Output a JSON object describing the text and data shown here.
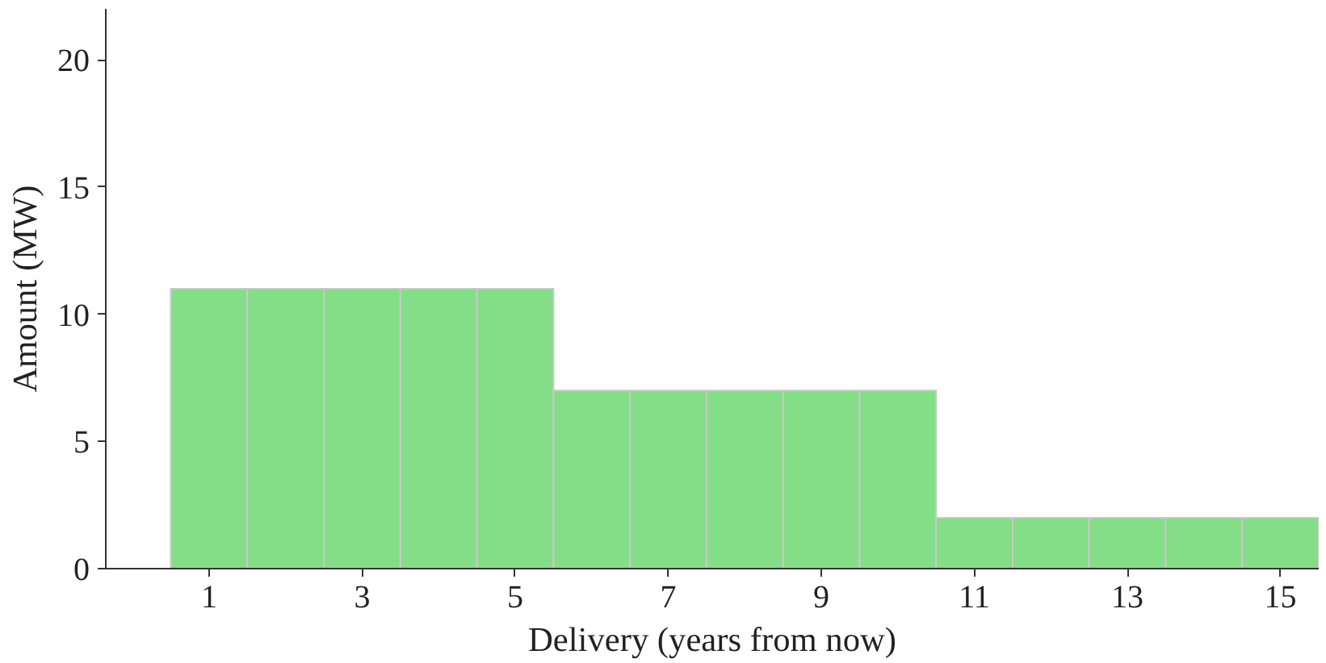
{
  "chart_data": {
    "type": "bar",
    "xlabel": "Delivery (years from now)",
    "ylabel": "Amount (MW)",
    "x": [
      1,
      2,
      3,
      4,
      5,
      6,
      7,
      8,
      9,
      10,
      11,
      12,
      13,
      14,
      15
    ],
    "values": [
      11,
      11,
      11,
      11,
      11,
      7,
      7,
      7,
      7,
      7,
      2,
      2,
      2,
      2,
      2
    ],
    "color": "#84de87",
    "xlim": [
      -0.35,
      15.5
    ],
    "xticks": [
      1,
      3,
      5,
      7,
      9,
      11,
      13,
      15
    ],
    "ylim": [
      0,
      22
    ],
    "yticks": [
      0,
      5,
      10,
      15,
      20
    ],
    "grid": false
  }
}
